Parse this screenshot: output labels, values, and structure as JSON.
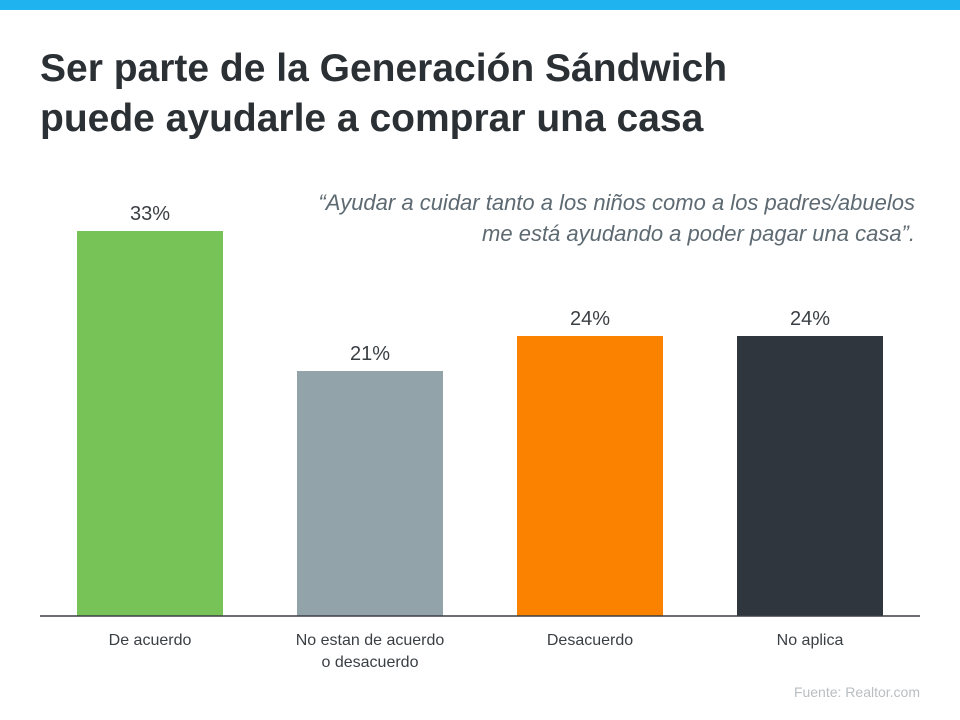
{
  "header": {
    "title_lines": [
      "Ser parte de la Generación Sándwich",
      "puede ayudarle a comprar una casa"
    ],
    "accent_color": "#1fb3f0"
  },
  "quote": {
    "lines": [
      "“Ayudar a cuidar tanto a los niños como a los padres/abuelos",
      "me está ayudando a poder pagar una casa”."
    ]
  },
  "chart_data": {
    "type": "bar",
    "title": "Ser parte de la Generación Sándwich puede ayudarle a comprar una casa",
    "categories": [
      [
        "De acuerdo"
      ],
      [
        "No estan de acuerdo",
        "o desacuerdo"
      ],
      [
        "Desacuerdo"
      ],
      [
        "No aplica"
      ]
    ],
    "values": [
      33,
      21,
      24,
      24
    ],
    "value_labels": [
      "33%",
      "21%",
      "24%",
      "24%"
    ],
    "colors": [
      "#77c358",
      "#92a3aa",
      "#fb8200",
      "#30363d"
    ],
    "xlabel": "",
    "ylabel": "",
    "ylim": [
      0,
      33
    ],
    "grid": false,
    "unit": "%"
  },
  "footer": {
    "source": "Fuente:  Realtor.com"
  }
}
